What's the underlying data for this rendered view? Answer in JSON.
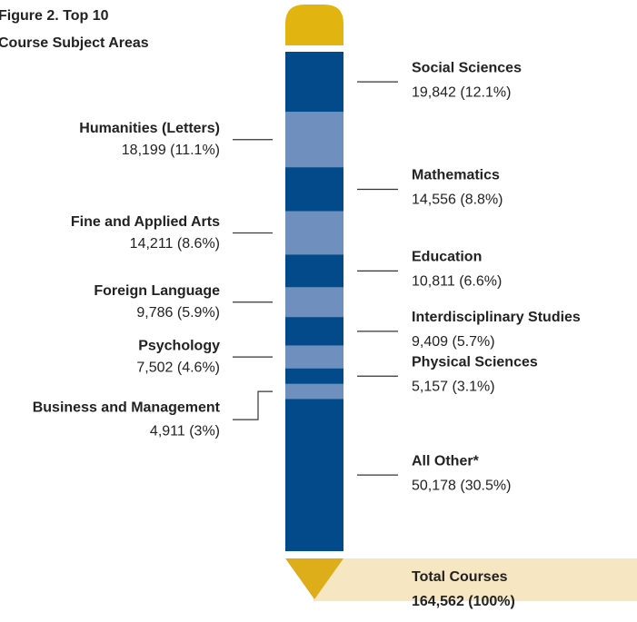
{
  "chart_data": {
    "type": "pencil",
    "title": [
      "Figure 2. Top 10",
      "Course Subject Areas"
    ],
    "categories": [
      "Social Sciences",
      "Humanities (Letters)",
      "Mathematics",
      "Fine and Applied Arts",
      "Education",
      "Foreign Language",
      "Interdisciplinary Studies",
      "Psychology",
      "Physical Sciences",
      "Business and Management",
      "All Other*"
    ],
    "values": [
      19842,
      18199,
      14556,
      14211,
      10811,
      9786,
      9409,
      7502,
      5157,
      4911,
      50178
    ],
    "value_labels": [
      "19,842 (12.1%)",
      "18,199 (11.1%)",
      "14,556 (8.8%)",
      "14,211 (8.6%)",
      "10,811 (6.6%)",
      "9,786 (5.9%)",
      "9,409 (5.7%)",
      "7,502 (4.6%)",
      "5,157 (3.1%)",
      "4,911 (3%)",
      "50,178 (30.5%)"
    ],
    "colors": [
      "#034a8a",
      "#6f8fbf"
    ],
    "total_label": "Total Courses",
    "total": 164562,
    "total_value_label": "164,562 (100%)"
  }
}
